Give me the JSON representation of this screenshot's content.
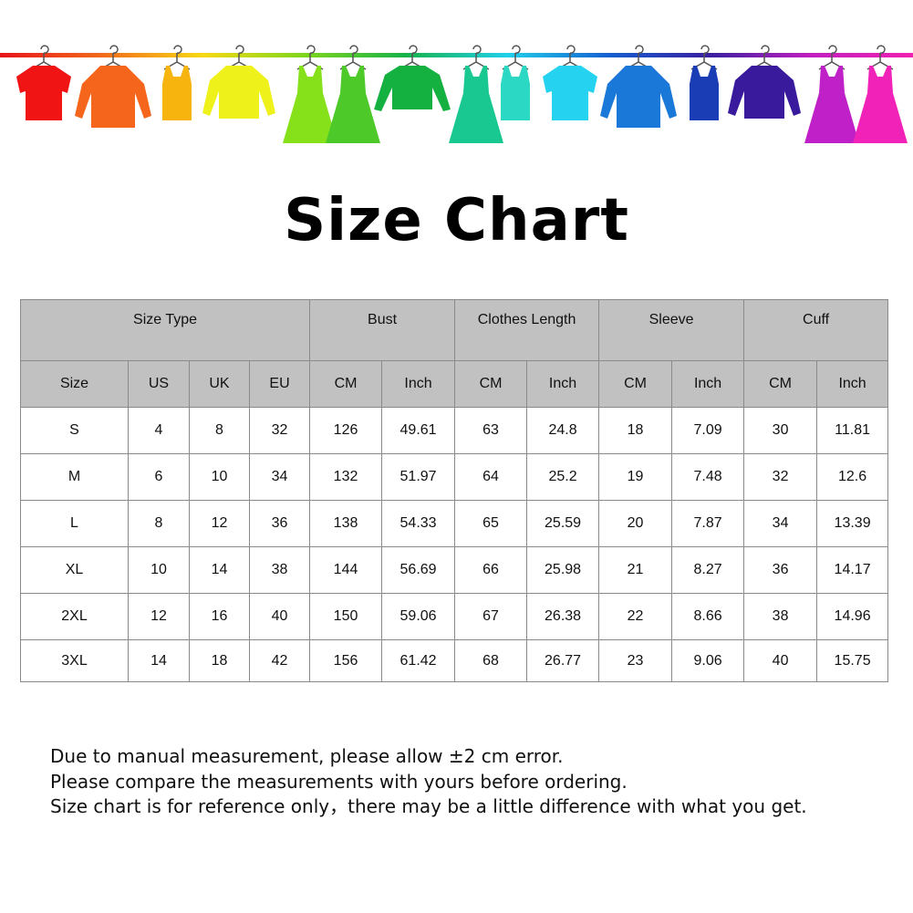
{
  "banner": {
    "rod_colors": [
      "#e8141b",
      "#f26a1b",
      "#f7d914",
      "#7fd61c",
      "#17b24a",
      "#20d0ea",
      "#1560d0",
      "#3a1fa0",
      "#c21fc0",
      "#f020b0"
    ],
    "items": [
      {
        "icon": "tshirt-icon",
        "color": "#f01414"
      },
      {
        "icon": "shirt-icon",
        "color": "#f5651c"
      },
      {
        "icon": "tank-top-icon",
        "color": "#f7b40f"
      },
      {
        "icon": "cardigan-icon",
        "color": "#eef21a"
      },
      {
        "icon": "dress-icon",
        "color": "#86e01a"
      },
      {
        "icon": "dress-icon",
        "color": "#4dca2a"
      },
      {
        "icon": "sweater-icon",
        "color": "#14b040"
      },
      {
        "icon": "dress-icon",
        "color": "#19c890"
      },
      {
        "icon": "tank-top-icon",
        "color": "#2ad8c4"
      },
      {
        "icon": "tshirt-icon",
        "color": "#25d2f0"
      },
      {
        "icon": "shirt-icon",
        "color": "#1a78d8"
      },
      {
        "icon": "tank-top-icon",
        "color": "#1a3cb4"
      },
      {
        "icon": "cardigan-icon",
        "color": "#3a1a9c"
      },
      {
        "icon": "dress-icon",
        "color": "#c020c8"
      },
      {
        "icon": "dress-icon",
        "color": "#f022b8"
      }
    ]
  },
  "title": "Size Chart",
  "table": {
    "group_headers": [
      "Size Type",
      "Bust",
      "Clothes Length",
      "Sleeve",
      "Cuff"
    ],
    "sub_headers": [
      "Size",
      "US",
      "UK",
      "EU",
      "CM",
      "Inch",
      "CM",
      "Inch",
      "CM",
      "Inch",
      "CM",
      "Inch"
    ],
    "rows": [
      [
        "S",
        "4",
        "8",
        "32",
        "126",
        "49.61",
        "63",
        "24.8",
        "18",
        "7.09",
        "30",
        "11.81"
      ],
      [
        "M",
        "6",
        "10",
        "34",
        "132",
        "51.97",
        "64",
        "25.2",
        "19",
        "7.48",
        "32",
        "12.6"
      ],
      [
        "L",
        "8",
        "12",
        "36",
        "138",
        "54.33",
        "65",
        "25.59",
        "20",
        "7.87",
        "34",
        "13.39"
      ],
      [
        "XL",
        "10",
        "14",
        "38",
        "144",
        "56.69",
        "66",
        "25.98",
        "21",
        "8.27",
        "36",
        "14.17"
      ],
      [
        "2XL",
        "12",
        "16",
        "40",
        "150",
        "59.06",
        "67",
        "26.38",
        "22",
        "8.66",
        "38",
        "14.96"
      ],
      [
        "3XL",
        "14",
        "18",
        "42",
        "156",
        "61.42",
        "68",
        "26.77",
        "23",
        "9.06",
        "40",
        "15.75"
      ]
    ]
  },
  "notes": [
    "Due to manual measurement, please allow ±2 cm error.",
    "Please compare the measurements with yours before ordering.",
    "Size chart is for reference only，there may be a little difference with what you get."
  ]
}
